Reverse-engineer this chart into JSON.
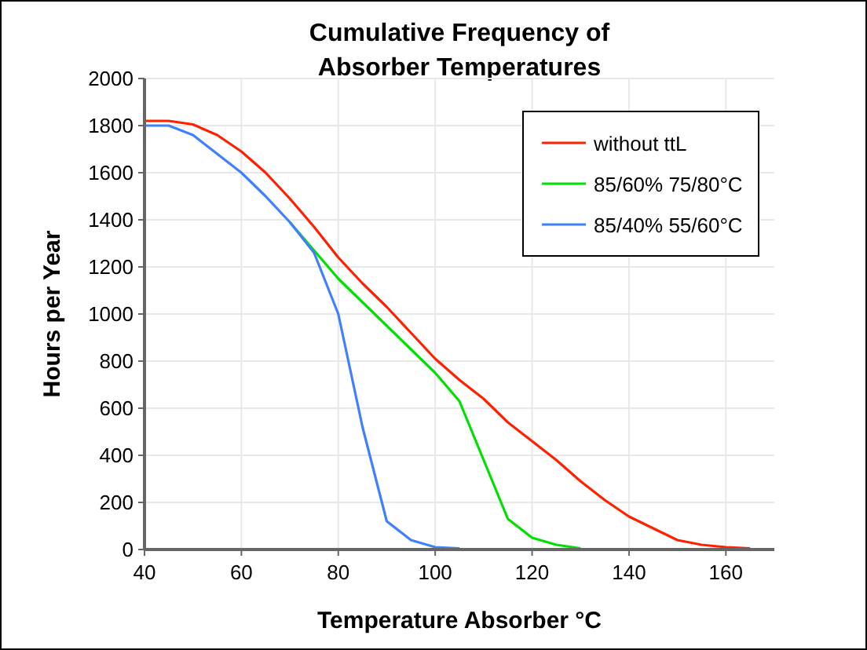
{
  "chart_data": {
    "type": "line",
    "title": "Cumulative Frequency of\nAbsorber Temperatures",
    "xlabel": "Temperature Absorber  °C",
    "ylabel": "Hours per Year",
    "xlim": [
      40,
      170
    ],
    "xticks": [
      40,
      60,
      80,
      100,
      120,
      140,
      160
    ],
    "ylim": [
      0,
      2000
    ],
    "yticks": [
      0,
      200,
      400,
      600,
      800,
      1000,
      1200,
      1400,
      1600,
      1800,
      2000
    ],
    "grid": true,
    "legend": "top right",
    "marker": "none",
    "line_style": "solid",
    "series": [
      {
        "name": "without ttL",
        "color": "#ff2000",
        "x": [
          40,
          45,
          50,
          55,
          60,
          65,
          70,
          75,
          80,
          85,
          90,
          95,
          100,
          105,
          110,
          115,
          120,
          125,
          130,
          135,
          140,
          145,
          150,
          155,
          160,
          165
        ],
        "values": [
          1820,
          1820,
          1805,
          1760,
          1690,
          1600,
          1490,
          1370,
          1240,
          1130,
          1030,
          920,
          810,
          720,
          640,
          540,
          460,
          380,
          290,
          210,
          140,
          90,
          40,
          20,
          10,
          5
        ]
      },
      {
        "name": "85/60% 75/80°C",
        "color": "#00e000",
        "x": [
          70,
          75,
          80,
          85,
          90,
          95,
          100,
          105,
          110,
          115,
          120,
          125,
          130
        ],
        "values": [
          1390,
          1270,
          1150,
          1050,
          950,
          850,
          750,
          630,
          380,
          130,
          50,
          20,
          5
        ]
      },
      {
        "name": "85/40% 55/60°C",
        "color": "#4080ff",
        "x": [
          40,
          45,
          50,
          55,
          60,
          65,
          70,
          75,
          80,
          85,
          90,
          95,
          100,
          105
        ],
        "values": [
          1800,
          1800,
          1760,
          1680,
          1600,
          1500,
          1390,
          1260,
          1000,
          520,
          120,
          40,
          10,
          5
        ]
      }
    ]
  }
}
